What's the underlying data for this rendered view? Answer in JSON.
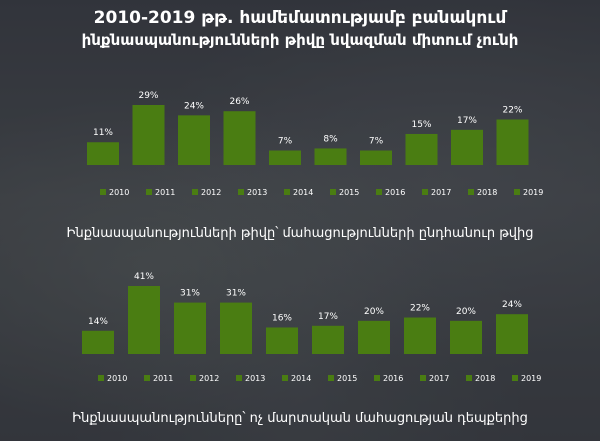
{
  "title_line1": "2010-2019 թթ. համեմատությամբ բանակում",
  "title_line2": "ինքնասպանությունների թիվը նվազման միտում չունի",
  "caption1": "Ինքնասպանությունների թիվը՝ մահացությունների ընդհանուր թվից",
  "caption2": "Ինքնասպանությունները՝ ոչ մարտական մահացության դեպքերից",
  "colors": {
    "bar": "#4a7d12",
    "text": "#ffffff"
  },
  "chart_data": [
    {
      "type": "bar",
      "categories": [
        "2010",
        "2011",
        "2012",
        "2013",
        "2014",
        "2015",
        "2016",
        "2017",
        "2018",
        "2019"
      ],
      "values": [
        11,
        29,
        24,
        26,
        7,
        8,
        7,
        15,
        17,
        22
      ],
      "value_labels": [
        "11%",
        "29%",
        "24%",
        "26%",
        "7%",
        "8%",
        "7%",
        "15%",
        "17%",
        "22%"
      ],
      "title": "Ինքնասպանությունների թիվը՝ մահացությունների ընդհանուր թվից",
      "ylim": [
        0,
        29
      ],
      "legend": "bottom",
      "grid": false
    },
    {
      "type": "bar",
      "categories": [
        "2010",
        "2011",
        "2012",
        "2013",
        "2014",
        "2015",
        "2016",
        "2017",
        "2018",
        "2019"
      ],
      "values": [
        14,
        41,
        31,
        31,
        16,
        17,
        20,
        22,
        20,
        24
      ],
      "value_labels": [
        "14%",
        "41%",
        "31%",
        "31%",
        "16%",
        "17%",
        "20%",
        "22%",
        "20%",
        "24%"
      ],
      "title": "Ինքնասպանությունները՝ ոչ մարտական մահացության դեպքերից",
      "ylim": [
        0,
        41
      ],
      "legend": "bottom",
      "grid": false
    }
  ]
}
